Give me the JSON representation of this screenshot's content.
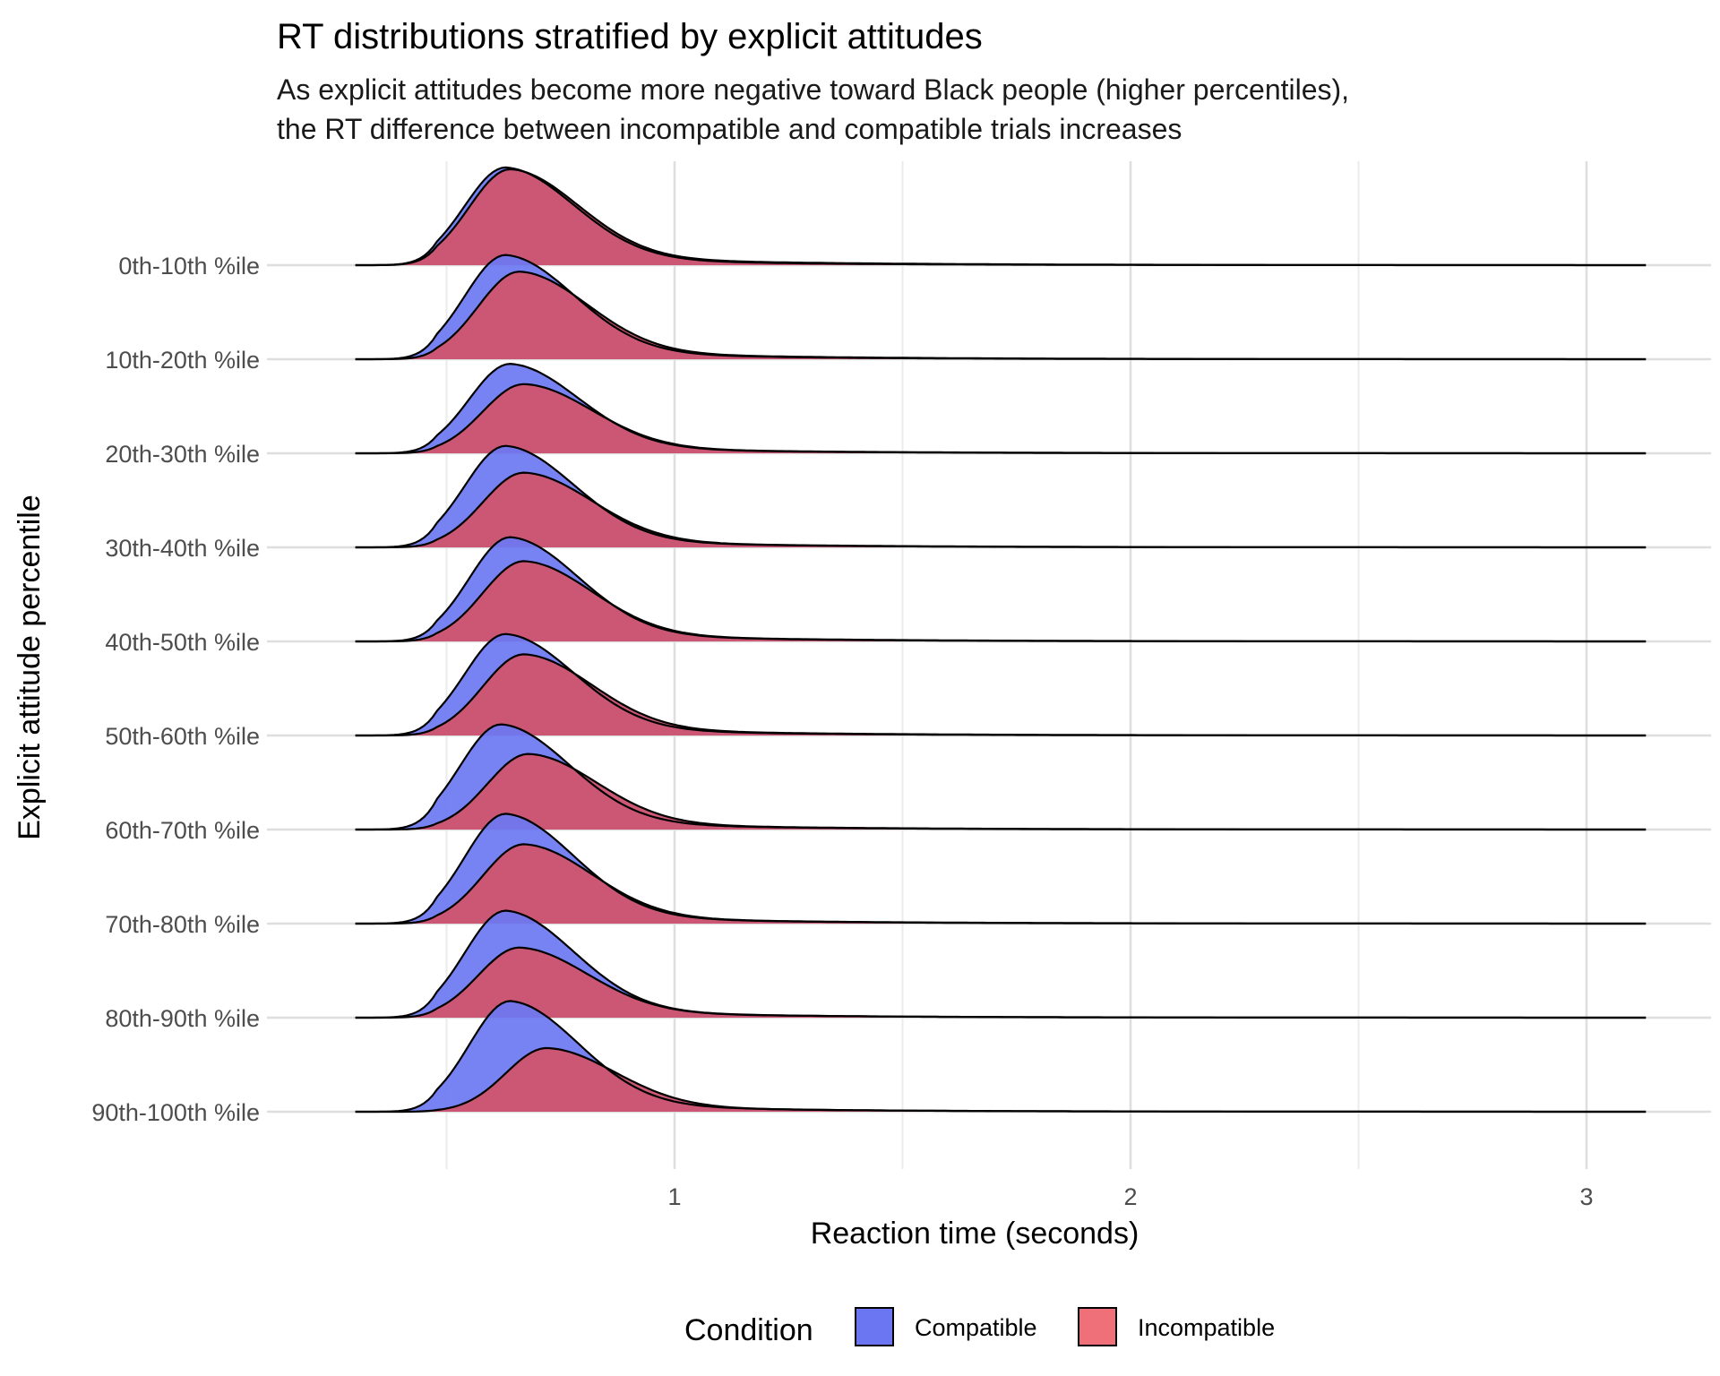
{
  "chart_data": {
    "type": "ridgeline-density",
    "title": "RT distributions stratified by explicit attitudes",
    "subtitle_lines": [
      "As explicit attitudes become more negative toward Black people (higher percentiles),",
      "the RT difference between incompatible and compatible trials increases"
    ],
    "xlabel": "Reaction time (seconds)",
    "ylabel": "Explicit attitude percentile",
    "x_range": [
      0.3,
      3.13
    ],
    "x_ticks": [
      1,
      2,
      3
    ],
    "x_tick_labels": [
      "1",
      "2",
      "3"
    ],
    "x_minor_gridlines": [
      0.5,
      1.5,
      2.5
    ],
    "categories": [
      "0th-10th %ile",
      "10th-20th %ile",
      "20th-30th %ile",
      "30th-40th %ile",
      "40th-50th %ile",
      "50th-60th %ile",
      "60th-70th %ile",
      "70th-80th %ile",
      "80th-90th %ile",
      "90th-100th %ile"
    ],
    "legend": {
      "title": "Condition",
      "entries": [
        "Compatible",
        "Incompatible"
      ]
    },
    "colors": {
      "Compatible": "#6B77F2",
      "Incompatible": "#F0707A",
      "overlap": "#B0426C"
    },
    "series": [
      {
        "name": "Compatible",
        "peak_x": [
          0.63,
          0.63,
          0.64,
          0.63,
          0.64,
          0.63,
          0.62,
          0.63,
          0.63,
          0.64
        ],
        "peak_height": [
          1.06,
          1.13,
          0.97,
          1.1,
          1.13,
          1.1,
          1.14,
          1.19,
          1.16,
          1.2
        ]
      },
      {
        "name": "Incompatible",
        "peak_x": [
          0.64,
          0.66,
          0.67,
          0.67,
          0.67,
          0.67,
          0.68,
          0.67,
          0.66,
          0.72
        ],
        "peak_height": [
          1.04,
          0.95,
          0.75,
          0.81,
          0.87,
          0.88,
          0.82,
          0.86,
          0.76,
          0.69
        ]
      }
    ]
  }
}
